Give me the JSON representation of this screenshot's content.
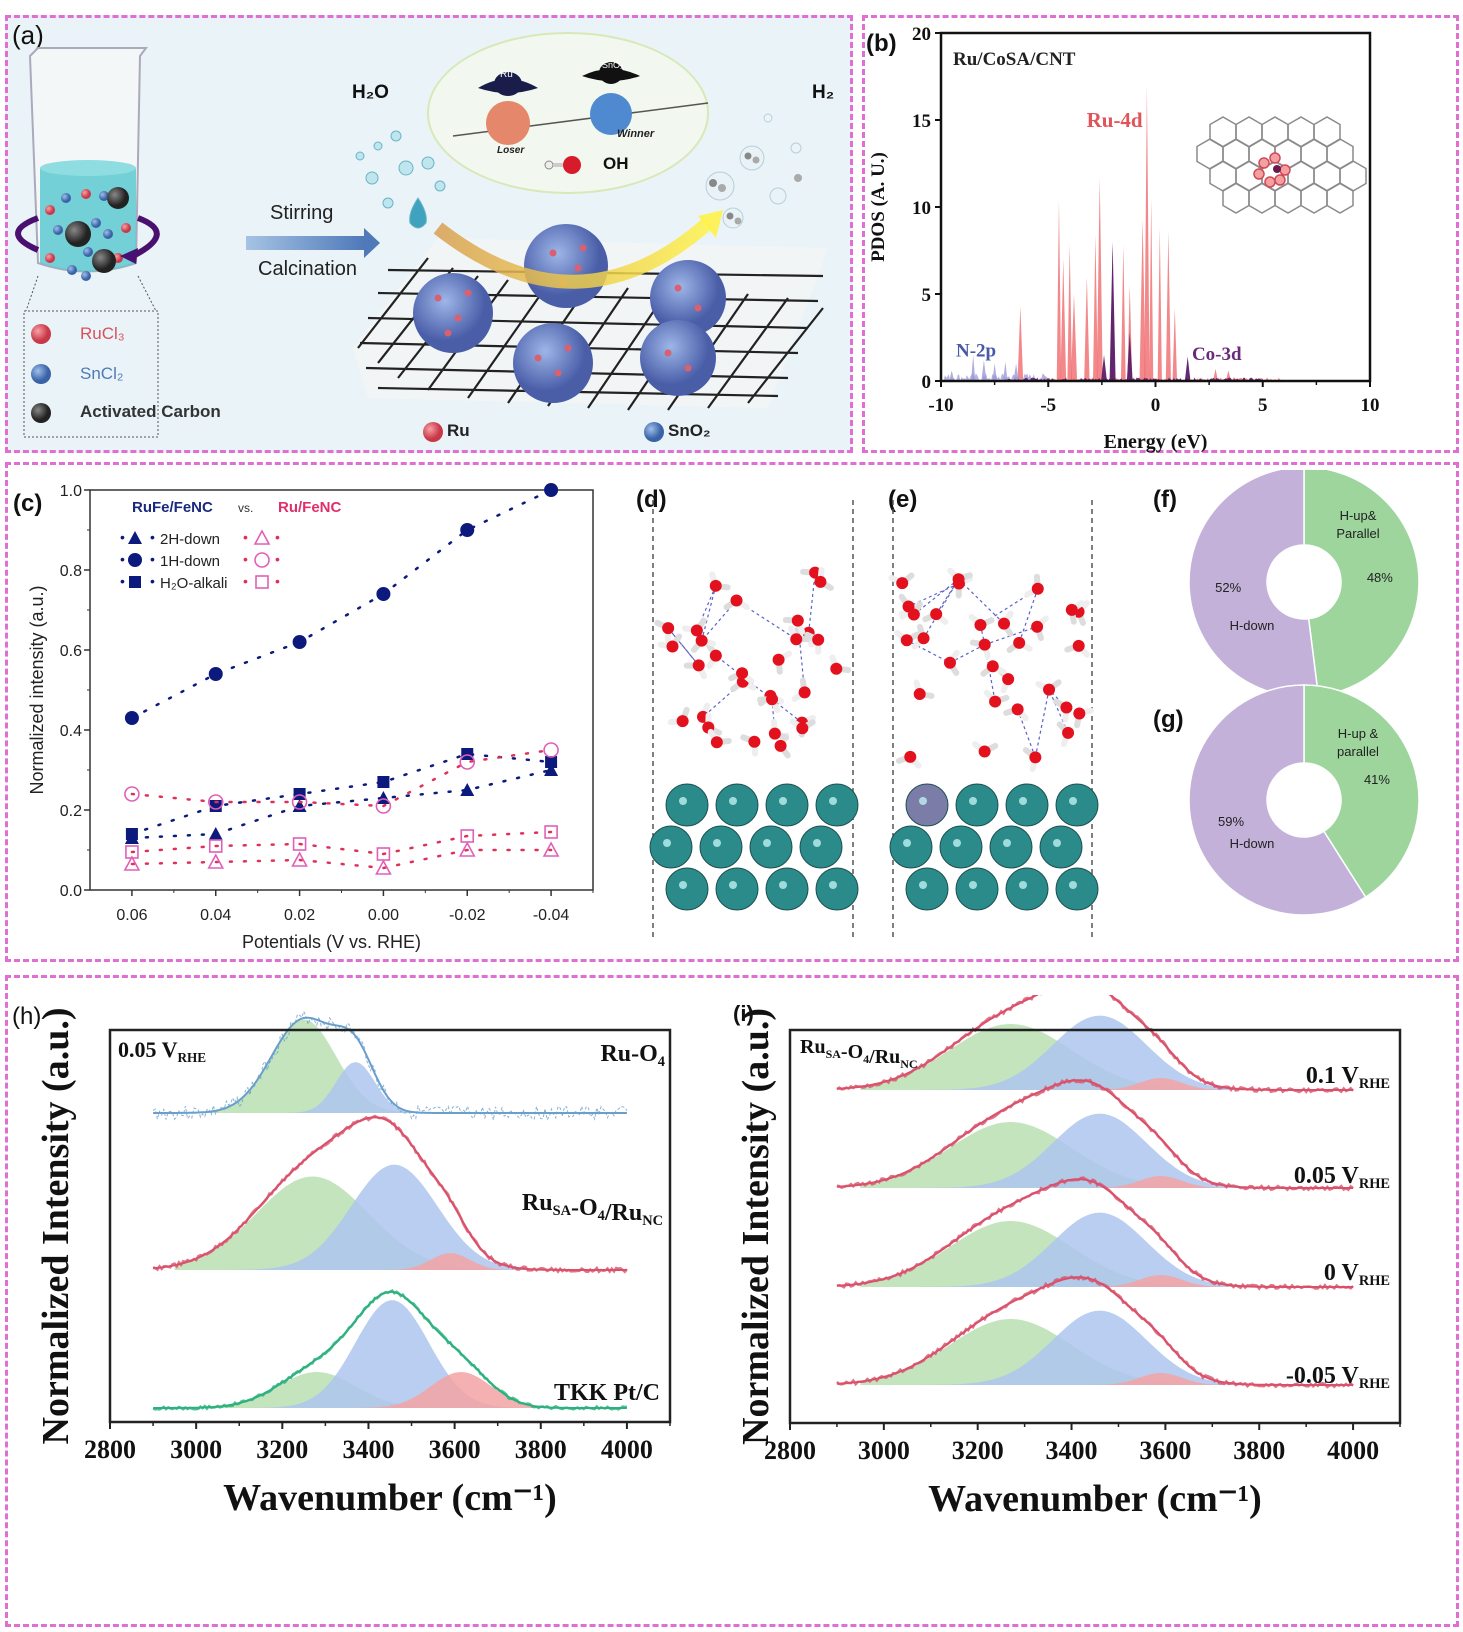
{
  "figure": {
    "panel_labels": [
      "(a)",
      "(b)",
      "(c)",
      "(d)",
      "(e)",
      "(f)",
      "(g)",
      "(h)",
      "(i)"
    ],
    "border_color": "#e06fd3"
  },
  "panel_a": {
    "arrow_top_label": "Stirring",
    "arrow_bottom_label": "Calcination",
    "h2o_label": "H₂O",
    "h2_label": "H₂",
    "oh_label": "OH",
    "loser_label": "Loser",
    "winner_label": "Winner",
    "ru_hat": "Ru",
    "sno2_hat": "SnO₂",
    "legend_box": [
      {
        "label": "RuCl₃",
        "color": "#d9505e",
        "text_color": "#d9505e"
      },
      {
        "label": "SnCl₂",
        "color": "#4f79b9",
        "text_color": "#4f79b9"
      },
      {
        "label": "Activated Carbon",
        "color": "#3a3a3a",
        "text_color": "#333333"
      }
    ],
    "bottom_legend": [
      {
        "label": "Ru",
        "color": "#d9505e"
      },
      {
        "label": "SnO₂",
        "color": "#4f79b9"
      }
    ],
    "background": "#e8f4f8"
  },
  "chart_data": [
    {
      "id": "b",
      "type": "area",
      "title": "Ru/CoSA/CNT",
      "xlabel": "Energy (eV)",
      "ylabel": "PDOS (A. U.)",
      "xlim": [
        -10,
        10
      ],
      "ylim": [
        0,
        20
      ],
      "xticks": [
        "-10",
        "-5",
        "0",
        "5",
        "10"
      ],
      "yticks": [
        "0",
        "5",
        "10",
        "15",
        "20"
      ],
      "series": [
        {
          "name": "Ru-4d",
          "color": "#f06a6e",
          "peaks": [
            [
              -6.3,
              4.3
            ],
            [
              -4.5,
              10.4
            ],
            [
              -4.3,
              7.0
            ],
            [
              -4.0,
              7.9
            ],
            [
              -3.8,
              5.0
            ],
            [
              -3.2,
              6.0
            ],
            [
              -2.8,
              8.4
            ],
            [
              -2.6,
              11.7
            ],
            [
              -2.0,
              7.8
            ],
            [
              -1.5,
              7.8
            ],
            [
              -1.2,
              5.5
            ],
            [
              -0.6,
              9.3
            ],
            [
              -0.4,
              17.0
            ],
            [
              -0.2,
              10.5
            ],
            [
              0.2,
              8.8
            ],
            [
              0.6,
              8.6
            ],
            [
              0.9,
              4.2
            ],
            [
              2.8,
              0.7
            ],
            [
              3.4,
              0.6
            ]
          ]
        },
        {
          "name": "N-2p",
          "color": "#9e9ad6",
          "peaks": [
            [
              -9.5,
              0.6
            ],
            [
              -8.5,
              1.5
            ],
            [
              -8.0,
              1.2
            ],
            [
              -7.5,
              1.0
            ],
            [
              -7.0,
              1.1
            ],
            [
              -6.5,
              1.0
            ]
          ]
        },
        {
          "name": "Co-3d",
          "color": "#5a1f6b",
          "peaks": [
            [
              -2.4,
              1.5
            ],
            [
              -2.0,
              8.0
            ],
            [
              -1.2,
              2.8
            ],
            [
              1.5,
              1.4
            ]
          ]
        }
      ],
      "annotations": [
        "Ru-4d",
        "N-2p",
        "Co-3d"
      ]
    },
    {
      "id": "c",
      "type": "scatter",
      "xlabel": "Potentials (V vs. RHE)",
      "ylabel": "Normalized intensity (a.u.)",
      "xlim": [
        0.07,
        -0.05
      ],
      "ylim": [
        0,
        1.0
      ],
      "categories": [
        "0.06",
        "0.04",
        "0.02",
        "0.00",
        "-0.02",
        "-0.04"
      ],
      "x": [
        0.06,
        0.04,
        0.02,
        0.0,
        -0.02,
        -0.04
      ],
      "yticks": [
        "0.0",
        "0.2",
        "0.4",
        "0.6",
        "0.8",
        "1.0"
      ],
      "legend_header_left": "RuFe/FeNC",
      "legend_header_vs": "vs.",
      "legend_header_right": "Ru/FeNC",
      "legend_items": [
        "2H-down",
        "1H-down",
        "H₂O-alkali"
      ],
      "series": [
        {
          "name": "RuFe/FeNC 2H-down",
          "marker": "triangle",
          "filled": true,
          "color": "#0b1a7c",
          "values": [
            0.13,
            0.14,
            0.21,
            0.23,
            0.25,
            0.3
          ]
        },
        {
          "name": "RuFe/FeNC 1H-down",
          "marker": "circle",
          "filled": true,
          "color": "#0b1a7c",
          "values": [
            0.43,
            0.54,
            0.62,
            0.74,
            0.9,
            1.0
          ]
        },
        {
          "name": "RuFe/FeNC H2O-alkali",
          "marker": "square",
          "filled": true,
          "color": "#0b1a7c",
          "values": [
            0.14,
            0.21,
            0.24,
            0.27,
            0.34,
            0.32
          ]
        },
        {
          "name": "Ru/FeNC 2H-down",
          "marker": "triangle",
          "filled": false,
          "color": "#e060b8",
          "values": [
            0.065,
            0.07,
            0.075,
            0.055,
            0.1,
            0.1
          ]
        },
        {
          "name": "Ru/FeNC 1H-down",
          "marker": "circle",
          "filled": false,
          "color": "#e060b8",
          "values": [
            0.24,
            0.22,
            0.22,
            0.21,
            0.32,
            0.35
          ]
        },
        {
          "name": "Ru/FeNC H2O-alkali",
          "marker": "square",
          "filled": false,
          "color": "#e060b8",
          "values": [
            0.095,
            0.11,
            0.115,
            0.09,
            0.135,
            0.145
          ]
        }
      ]
    },
    {
      "id": "f",
      "type": "pie",
      "donut": true,
      "slices": [
        {
          "label": "H-up& Parallel",
          "label_lines": [
            "H-up&",
            "Parallel"
          ],
          "value": 48,
          "pct": "48%",
          "color": "#9dd59d"
        },
        {
          "label": "H-down",
          "label_lines": [
            "H-down"
          ],
          "value": 52,
          "pct": "52%",
          "color": "#c3b1d9"
        }
      ]
    },
    {
      "id": "g",
      "type": "pie",
      "donut": true,
      "slices": [
        {
          "label": "H-up & parallel",
          "label_lines": [
            "H-up &",
            "parallel"
          ],
          "value": 41,
          "pct": "41%",
          "color": "#9dd59d"
        },
        {
          "label": "H-down",
          "label_lines": [
            "H-down"
          ],
          "value": 59,
          "pct": "59%",
          "color": "#c3b1d9"
        }
      ]
    },
    {
      "id": "h",
      "type": "area",
      "xlabel": "Wavenumber (cm⁻¹)",
      "ylabel": "Normalized Intensity (a.u.)",
      "xlim": [
        2800,
        4100
      ],
      "xticks": [
        "2800",
        "3000",
        "3200",
        "3400",
        "3600",
        "3800",
        "4000"
      ],
      "corner_label": "0.05 V",
      "corner_label_sub": "RHE",
      "component_colors": {
        "low": "#b9dfb0",
        "mid": "#aec5ee",
        "high": "#f3a3a3"
      },
      "series": [
        {
          "name": "Ru-O4",
          "label": "Ru-O",
          "label_sub": "4",
          "label_sub2": "",
          "line_color": "#6a9fcc",
          "components": [
            {
              "center": 3250,
              "height": 0.55,
              "width": 75,
              "band": "low"
            },
            {
              "center": 3370,
              "height": 0.3,
              "width": 45,
              "band": "mid"
            }
          ]
        },
        {
          "name": "RuSA-O4/RuNC",
          "label": "Ru",
          "label_sub": "SA",
          "label_mid": "-O",
          "label_sub_mid": "4",
          "label_end": "/Ru",
          "label_sub2": "NC",
          "line_color": "#d9506a",
          "components": [
            {
              "center": 3270,
              "height": 0.55,
              "width": 130,
              "band": "low"
            },
            {
              "center": 3460,
              "height": 0.62,
              "width": 100,
              "band": "mid"
            },
            {
              "center": 3590,
              "height": 0.1,
              "width": 45,
              "band": "high"
            }
          ]
        },
        {
          "name": "TKK Pt/C",
          "label": "TKK Pt/C",
          "line_color": "#2bb07e",
          "components": [
            {
              "center": 3280,
              "height": 0.3,
              "width": 90,
              "band": "low"
            },
            {
              "center": 3455,
              "height": 0.9,
              "width": 85,
              "band": "mid"
            },
            {
              "center": 3615,
              "height": 0.3,
              "width": 70,
              "band": "high"
            }
          ]
        }
      ]
    },
    {
      "id": "i",
      "type": "area",
      "xlabel": "Wavenumber (cm⁻¹)",
      "ylabel": "Normalized Intensity (a.u.)",
      "xlim": [
        2800,
        4100
      ],
      "xticks": [
        "2800",
        "3000",
        "3200",
        "3400",
        "3600",
        "3800",
        "4000"
      ],
      "corner_label": "Ru",
      "corner_label_parts": [
        "Ru",
        "SA",
        "-O",
        "4",
        "/Ru",
        "NC"
      ],
      "component_colors": {
        "low": "#b9dfb0",
        "mid": "#aec5ee",
        "high": "#f3a3a3"
      },
      "series": [
        {
          "name": "0.1 V RHE",
          "label": "0.1 V",
          "label_sub": "RHE",
          "line_color": "#d9506a"
        },
        {
          "name": "0.05 V RHE",
          "label": "0.05 V",
          "label_sub": "RHE",
          "line_color": "#d9506a"
        },
        {
          "name": "0 V RHE",
          "label": "0 V",
          "label_sub": "RHE",
          "line_color": "#d9506a"
        },
        {
          "name": "-0.05 V RHE",
          "label": "-0.05 V",
          "label_sub": "RHE",
          "line_color": "#d9506a"
        }
      ],
      "components": [
        {
          "center": 3270,
          "height": 0.55,
          "width": 130,
          "band": "low"
        },
        {
          "center": 3460,
          "height": 0.62,
          "width": 100,
          "band": "mid"
        },
        {
          "center": 3590,
          "height": 0.1,
          "width": 45,
          "band": "high"
        }
      ]
    }
  ]
}
